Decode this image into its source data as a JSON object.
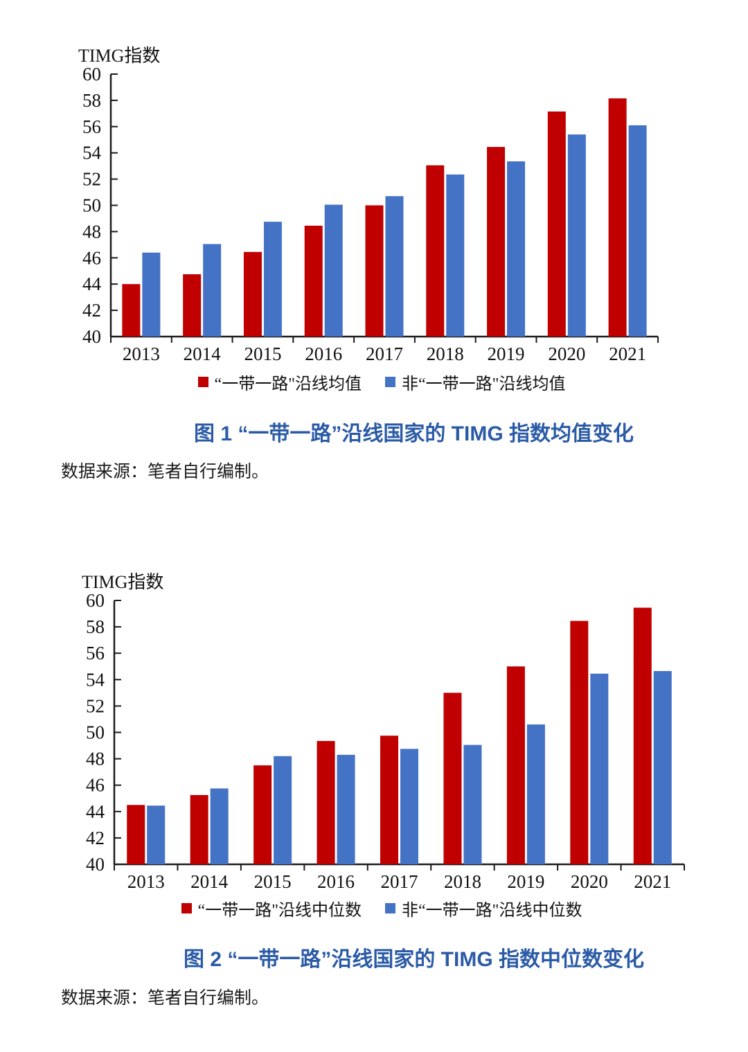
{
  "page": {
    "background": "#ffffff"
  },
  "colors": {
    "bri_red": "#C00000",
    "non_bri_blue": "#4472C4",
    "title_blue": "#2B5BA6"
  },
  "chart_data": [
    {
      "type": "bar",
      "title": "图 1 “一带一路”沿线国家的 TIMG 指数均值变化",
      "ylabel": "TIMG指数",
      "xlabel": "",
      "source": "数据来源：笔者自行编制。",
      "categories": [
        "2013",
        "2014",
        "2015",
        "2016",
        "2017",
        "2018",
        "2019",
        "2020",
        "2021"
      ],
      "series": [
        {
          "name": "“一带一路\"沿线均值",
          "color": "#C00000",
          "values": [
            44.0,
            44.75,
            46.45,
            48.45,
            50.0,
            53.05,
            54.45,
            57.15,
            58.15
          ]
        },
        {
          "name": "非“一带一路\"沿线均值",
          "color": "#4472C4",
          "values": [
            46.4,
            47.05,
            48.75,
            50.05,
            50.7,
            52.35,
            53.35,
            55.4,
            56.1
          ]
        }
      ],
      "ylim": [
        40,
        60
      ],
      "ytick_step": 2,
      "grid": false,
      "legend_position": "bottom"
    },
    {
      "type": "bar",
      "title": "图 2 “一带一路”沿线国家的 TIMG 指数中位数变化",
      "ylabel": "TIMG指数",
      "xlabel": "",
      "source": "数据来源：笔者自行编制。",
      "categories": [
        "2013",
        "2014",
        "2015",
        "2016",
        "2017",
        "2018",
        "2019",
        "2020",
        "2021"
      ],
      "series": [
        {
          "name": "“一带一路\"沿线中位数",
          "color": "#C00000",
          "values": [
            44.5,
            45.25,
            47.5,
            49.35,
            49.75,
            53.0,
            55.0,
            58.45,
            59.45
          ]
        },
        {
          "name": "非“一带一路\"沿线中位数",
          "color": "#4472C4",
          "values": [
            44.45,
            45.75,
            48.2,
            48.3,
            48.75,
            49.05,
            50.6,
            54.45,
            54.65
          ]
        }
      ],
      "ylim": [
        40,
        60
      ],
      "ytick_step": 2,
      "grid": false,
      "legend_position": "bottom"
    }
  ]
}
